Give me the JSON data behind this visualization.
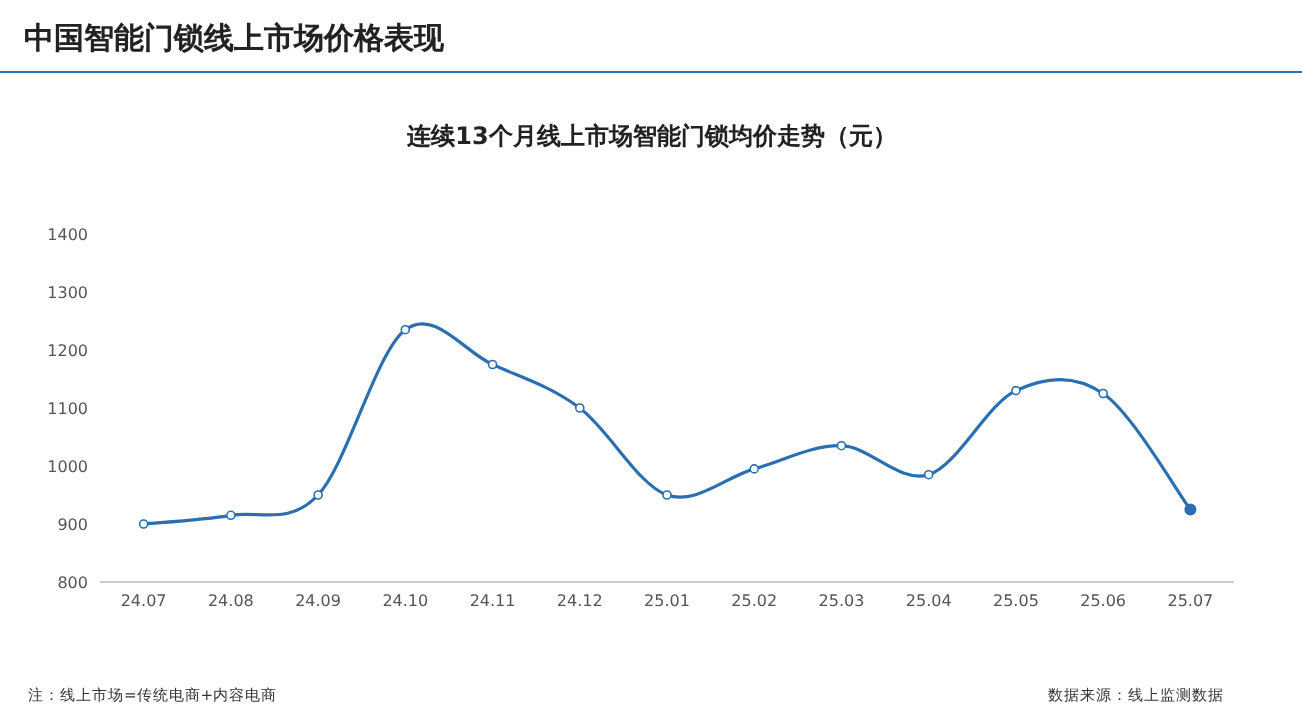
{
  "chart_data": {
    "type": "line",
    "title": "中国智能门锁线上市场价格表现",
    "subtitle": "连续13个月线上市场智能门锁均价走势（元）",
    "categories": [
      "24.07",
      "24.08",
      "24.09",
      "24.10",
      "24.11",
      "24.12",
      "25.01",
      "25.02",
      "25.03",
      "25.04",
      "25.05",
      "25.06",
      "25.07"
    ],
    "series": [
      {
        "color": "#2a6fb0",
        "values": [
          900,
          915,
          950,
          1235,
          1175,
          1100,
          950,
          995,
          1035,
          985,
          1130,
          1125,
          925
        ]
      }
    ],
    "ylim": [
      800,
      1400
    ],
    "yticks": [
      800,
      900,
      1000,
      1100,
      1200,
      1300,
      1400
    ],
    "marker": "circle",
    "annotations": [
      "注：线上市场=传统电商+内容电商",
      "数据来源：线上监测数据"
    ]
  }
}
